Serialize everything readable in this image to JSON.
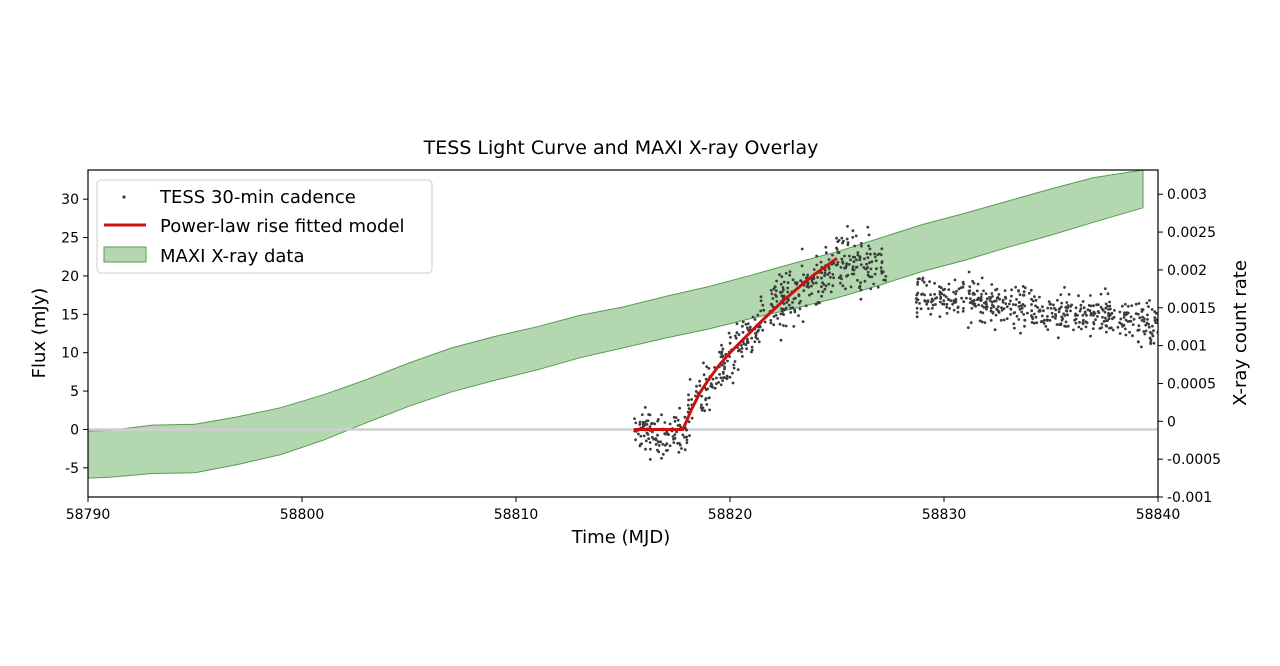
{
  "chart_data": {
    "type": "scatter",
    "title": "TESS Light Curve and MAXI X-ray Overlay",
    "xlabel": "Time (MJD)",
    "ylabel": "Flux (mJy)",
    "y2label": "X-ray count rate",
    "xlim": [
      58790,
      58840
    ],
    "ylim": [
      -8.8,
      33.8
    ],
    "y2lim": [
      -0.001,
      0.00332
    ],
    "x_ticks": [
      "58790",
      "58800",
      "58810",
      "58820",
      "58830",
      "58840"
    ],
    "y_ticks": [
      "-5",
      "0",
      "5",
      "10",
      "15",
      "20",
      "25",
      "30"
    ],
    "y2_ticks": [
      "-0.001",
      "-0.0005",
      "0",
      "0.0005",
      "0.001",
      "0.0015",
      "0.002",
      "0.0025",
      "0.003"
    ],
    "legend_position": "top-left",
    "grid": false,
    "series": [
      {
        "name": "TESS 30-min cadence",
        "kind": "scatter",
        "color": "#3c3c3c",
        "segments": [
          {
            "x_start": 58815.5,
            "x_end": 58818.0,
            "y_start": -0.5,
            "y_end": -1.0,
            "noise": 2.8,
            "count": 110
          },
          {
            "x_start": 58818.0,
            "x_end": 58821.5,
            "y_start": 2.0,
            "y_end": 15.0,
            "noise": 3.0,
            "count": 150
          },
          {
            "x_start": 58821.5,
            "x_end": 58825.5,
            "y_start": 15.0,
            "y_end": 22.5,
            "noise": 3.2,
            "count": 190
          },
          {
            "x_start": 58825.5,
            "x_end": 58827.3,
            "y_start": 22.0,
            "y_end": 21.0,
            "noise": 3.5,
            "count": 80
          },
          {
            "x_start": 58828.7,
            "x_end": 58834.0,
            "y_start": 17.5,
            "y_end": 16.0,
            "noise": 2.3,
            "count": 230
          },
          {
            "x_start": 58834.0,
            "x_end": 58840.0,
            "y_start": 16.0,
            "y_end": 13.5,
            "noise": 2.3,
            "count": 250
          }
        ]
      },
      {
        "name": "Power-law rise fitted model",
        "kind": "line",
        "color": "#cc1111",
        "x": [
          58815.5,
          58817.8,
          58818.2,
          58818.6,
          58819.0,
          58819.5,
          58820.0,
          58820.5,
          58821.0,
          58821.5,
          58822.0,
          58822.5,
          58823.0,
          58823.5,
          58824.0,
          58824.5,
          58825.0
        ],
        "y": [
          0,
          0,
          2.6,
          4.8,
          6.5,
          8.4,
          10.0,
          11.4,
          12.8,
          14.2,
          15.5,
          16.8,
          18.0,
          19.2,
          20.3,
          21.3,
          22.3
        ]
      },
      {
        "name": "MAXI X-ray data",
        "kind": "band",
        "axis": "right",
        "color": "#74b86f",
        "fill_opacity": 0.55,
        "x": [
          58790,
          58791,
          58793,
          58795,
          58797,
          58799,
          58801,
          58803,
          58805,
          58807,
          58809,
          58811,
          58813,
          58815,
          58817,
          58819,
          58821,
          58823,
          58825,
          58827,
          58829,
          58831,
          58833,
          58835,
          58837,
          58839.3
        ],
        "upper": [
          -0.00013,
          -0.00012,
          -5e-05,
          -4e-05,
          6e-05,
          0.00018,
          0.00035,
          0.00055,
          0.00077,
          0.00097,
          0.00112,
          0.00125,
          0.0014,
          0.00151,
          0.00165,
          0.00178,
          0.00193,
          0.00209,
          0.00224,
          0.00242,
          0.0026,
          0.00275,
          0.00291,
          0.00307,
          0.00322,
          0.00332
        ],
        "lower": [
          -0.00075,
          -0.00074,
          -0.00069,
          -0.00068,
          -0.00057,
          -0.00044,
          -0.00025,
          -2e-05,
          0.0002,
          0.00039,
          0.00054,
          0.00068,
          0.00084,
          0.00097,
          0.0011,
          0.00122,
          0.00136,
          0.00149,
          0.00163,
          0.0018,
          0.00198,
          0.00213,
          0.0023,
          0.00246,
          0.00263,
          0.00282
        ]
      }
    ],
    "reference_line": {
      "y": 0,
      "color": "#cfcfcf"
    }
  }
}
